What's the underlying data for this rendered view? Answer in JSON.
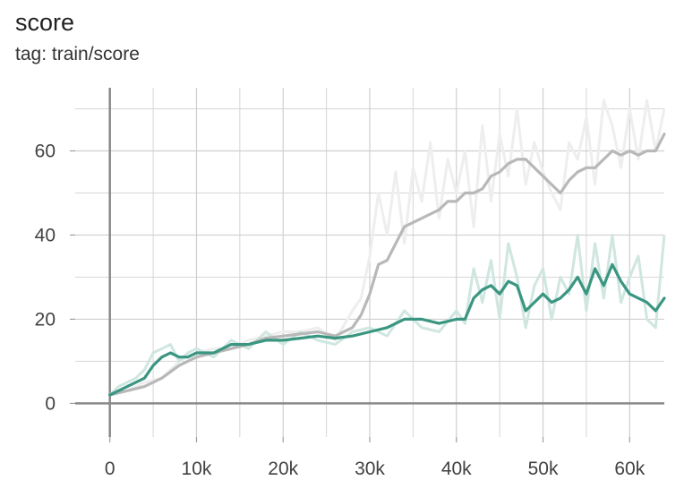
{
  "title": "score",
  "subtitle": "tag: train/score",
  "chart_data": {
    "type": "line",
    "title": "score",
    "subtitle": "tag: train/score",
    "xlabel": "",
    "ylabel": "",
    "xlim": [
      -4000,
      64000
    ],
    "ylim": [
      -8,
      75
    ],
    "x_ticks": [
      0,
      10000,
      20000,
      30000,
      40000,
      50000,
      60000
    ],
    "x_tick_labels": [
      "0",
      "10k",
      "20k",
      "30k",
      "40k",
      "50k",
      "60k"
    ],
    "y_ticks": [
      0,
      20,
      40,
      60
    ],
    "y_tick_labels": [
      "0",
      "20",
      "40",
      "60"
    ],
    "grid": true,
    "legend": "none",
    "series": [
      {
        "color": "#9e9e9e",
        "smoothed_color": "#b8b8b8",
        "raw_color": "#eeeeee",
        "x": [
          0,
          2000,
          4000,
          6000,
          8000,
          10000,
          12000,
          14000,
          16000,
          18000,
          20000,
          22000,
          24000,
          26000,
          28000,
          29000,
          30000,
          31000,
          32000,
          33000,
          34000,
          35000,
          36000,
          37000,
          38000,
          39000,
          40000,
          41000,
          42000,
          43000,
          44000,
          45000,
          46000,
          47000,
          48000,
          49000,
          50000,
          51000,
          52000,
          53000,
          54000,
          55000,
          56000,
          57000,
          58000,
          59000,
          60000,
          61000,
          62000,
          63000,
          64000
        ],
        "y": [
          2,
          3,
          4,
          6,
          9,
          11,
          12,
          13,
          14,
          15.5,
          16,
          16.5,
          17,
          16,
          18,
          21,
          26,
          33,
          34,
          38,
          42,
          43,
          44,
          45,
          46,
          48,
          48,
          50,
          50,
          51,
          54,
          55,
          57,
          58,
          58,
          56,
          54,
          52,
          50,
          53,
          55,
          56,
          56,
          58,
          60,
          59,
          60,
          59,
          60,
          60,
          64
        ],
        "raw_y": [
          2,
          3,
          5,
          6,
          10,
          12,
          13,
          13,
          15,
          16,
          17,
          17,
          18,
          15,
          22,
          25,
          35,
          50,
          40,
          55,
          38,
          56,
          48,
          62,
          44,
          58,
          50,
          60,
          42,
          66,
          48,
          64,
          54,
          70,
          52,
          62,
          55,
          50,
          46,
          62,
          58,
          68,
          52,
          72,
          66,
          56,
          70,
          58,
          72,
          60,
          70
        ]
      },
      {
        "color": "#2e8b7a",
        "smoothed_color": "#3a9681",
        "raw_color": "#cfe6e1",
        "x": [
          0,
          1000,
          2000,
          3000,
          4000,
          5000,
          6000,
          7000,
          8000,
          9000,
          10000,
          12000,
          14000,
          16000,
          18000,
          20000,
          22000,
          24000,
          26000,
          28000,
          30000,
          32000,
          34000,
          36000,
          38000,
          40000,
          41000,
          42000,
          43000,
          44000,
          45000,
          46000,
          47000,
          48000,
          49000,
          50000,
          51000,
          52000,
          53000,
          54000,
          55000,
          56000,
          57000,
          58000,
          59000,
          60000,
          61000,
          62000,
          63000,
          64000
        ],
        "y": [
          2,
          3,
          4,
          5,
          6,
          9,
          11,
          12,
          11,
          11,
          12,
          12,
          14,
          14,
          15,
          15,
          15.5,
          16,
          15.5,
          16,
          17,
          18,
          20,
          20,
          19,
          20,
          20,
          25,
          27,
          28,
          26,
          29,
          28,
          22,
          24,
          26,
          24,
          25,
          27,
          30,
          26,
          32,
          28,
          33,
          29,
          26,
          25,
          24,
          22,
          25
        ],
        "raw_y": [
          2,
          4,
          5,
          6,
          8,
          12,
          13,
          14,
          10,
          12,
          13,
          11,
          15,
          13,
          17,
          14,
          17,
          15,
          14,
          17,
          18,
          16,
          22,
          18,
          17,
          22,
          19,
          32,
          24,
          34,
          20,
          38,
          30,
          18,
          28,
          32,
          20,
          30,
          26,
          40,
          22,
          38,
          25,
          40,
          24,
          30,
          35,
          20,
          18,
          40
        ]
      }
    ]
  }
}
